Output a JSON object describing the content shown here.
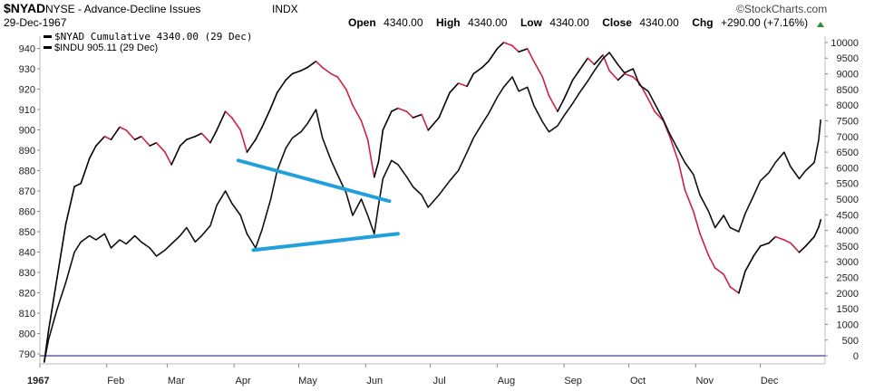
{
  "header": {
    "symbol": "$NYAD",
    "description": "NYSE - Advance-Decline Issues",
    "exchange": "INDX",
    "date": "29-Dec-1967",
    "watermark": "©StockCharts.com",
    "open_label": "Open",
    "open": "4340.00",
    "high_label": "High",
    "high": "4340.00",
    "low_label": "Low",
    "low": "4340.00",
    "close_label": "Close",
    "close": "4340.00",
    "chg_label": "Chg",
    "chg": "+290.00 (+7.16%)"
  },
  "colors": {
    "nyad_up": "#000000",
    "nyad_down": "#cc2244",
    "indu": "#111111",
    "trendline": "#22a0dc",
    "baseline": "#2b2b8a",
    "axis": "#bdbdbd",
    "chg_arrow": "#2e8b2e"
  },
  "chart_data": {
    "type": "line",
    "legend": [
      {
        "name": "$NYAD Cumulative 4340.00 (29 Dec)"
      },
      {
        "name": "$INDU 905.11 (29 Dec)"
      }
    ],
    "x_ticks": [
      "1967",
      "Feb",
      "Mar",
      "Apr",
      "May",
      "Jun",
      "Jul",
      "Aug",
      "Sep",
      "Oct",
      "Nov",
      "Dec"
    ],
    "left_axis": {
      "ticks": [
        790,
        800,
        810,
        820,
        830,
        840,
        850,
        860,
        870,
        880,
        890,
        900,
        910,
        920,
        930,
        940
      ],
      "range": [
        786,
        946
      ]
    },
    "right_axis": {
      "ticks": [
        0,
        500,
        1000,
        1500,
        2000,
        2500,
        3000,
        3500,
        4000,
        4500,
        5000,
        5500,
        6000,
        6500,
        7000,
        7500,
        8000,
        8500,
        9000,
        9500,
        10000
      ],
      "range": [
        -200,
        10200
      ]
    },
    "series": [
      {
        "name": "$NYAD Cumulative",
        "axis": "right",
        "points": [
          [
            "1967-01-03",
            -200
          ],
          [
            "1967-01-05",
            800
          ],
          [
            "1967-01-09",
            2500
          ],
          [
            "1967-01-13",
            4200
          ],
          [
            "1967-01-17",
            5400
          ],
          [
            "1967-01-20",
            5500
          ],
          [
            "1967-01-24",
            6300
          ],
          [
            "1967-01-27",
            6700
          ],
          [
            "1967-01-31",
            7000
          ],
          [
            "1967-02-03",
            6900
          ],
          [
            "1967-02-07",
            7300
          ],
          [
            "1967-02-10",
            7200
          ],
          [
            "1967-02-14",
            6900
          ],
          [
            "1967-02-17",
            7000
          ],
          [
            "1967-02-21",
            6700
          ],
          [
            "1967-02-24",
            6800
          ],
          [
            "1967-02-28",
            6500
          ],
          [
            "1967-03-03",
            6100
          ],
          [
            "1967-03-07",
            6700
          ],
          [
            "1967-03-10",
            6900
          ],
          [
            "1967-03-14",
            7000
          ],
          [
            "1967-03-17",
            7100
          ],
          [
            "1967-03-21",
            6800
          ],
          [
            "1967-03-24",
            7200
          ],
          [
            "1967-03-28",
            7800
          ],
          [
            "1967-03-31",
            7600
          ],
          [
            "1967-04-04",
            7200
          ],
          [
            "1967-04-07",
            6500
          ],
          [
            "1967-04-11",
            6900
          ],
          [
            "1967-04-14",
            7300
          ],
          [
            "1967-04-18",
            7900
          ],
          [
            "1967-04-21",
            8400
          ],
          [
            "1967-04-25",
            8800
          ],
          [
            "1967-04-28",
            9000
          ],
          [
            "1967-05-02",
            9100
          ],
          [
            "1967-05-05",
            9200
          ],
          [
            "1967-05-09",
            9400
          ],
          [
            "1967-05-12",
            9200
          ],
          [
            "1967-05-16",
            9000
          ],
          [
            "1967-05-19",
            8900
          ],
          [
            "1967-05-23",
            8500
          ],
          [
            "1967-05-26",
            8000
          ],
          [
            "1967-05-30",
            7500
          ],
          [
            "1967-06-02",
            6900
          ],
          [
            "1967-06-05",
            5700
          ],
          [
            "1967-06-07",
            6200
          ],
          [
            "1967-06-09",
            7200
          ],
          [
            "1967-06-13",
            7800
          ],
          [
            "1967-06-16",
            7900
          ],
          [
            "1967-06-20",
            7800
          ],
          [
            "1967-06-23",
            7600
          ],
          [
            "1967-06-27",
            7700
          ],
          [
            "1967-06-30",
            7200
          ],
          [
            "1967-07-05",
            7600
          ],
          [
            "1967-07-10",
            8400
          ],
          [
            "1967-07-14",
            8700
          ],
          [
            "1967-07-18",
            8600
          ],
          [
            "1967-07-21",
            9000
          ],
          [
            "1967-07-25",
            9200
          ],
          [
            "1967-07-28",
            9400
          ],
          [
            "1967-08-01",
            9800
          ],
          [
            "1967-08-04",
            10000
          ],
          [
            "1967-08-08",
            9900
          ],
          [
            "1967-08-11",
            9700
          ],
          [
            "1967-08-15",
            9800
          ],
          [
            "1967-08-18",
            9400
          ],
          [
            "1967-08-22",
            8900
          ],
          [
            "1967-08-25",
            8300
          ],
          [
            "1967-08-29",
            7800
          ],
          [
            "1967-09-01",
            8200
          ],
          [
            "1967-09-05",
            8800
          ],
          [
            "1967-09-08",
            9100
          ],
          [
            "1967-09-12",
            9500
          ],
          [
            "1967-09-15",
            9300
          ],
          [
            "1967-09-19",
            9600
          ],
          [
            "1967-09-22",
            9100
          ],
          [
            "1967-09-26",
            8800
          ],
          [
            "1967-09-29",
            9000
          ],
          [
            "1967-10-03",
            8900
          ],
          [
            "1967-10-06",
            8700
          ],
          [
            "1967-10-10",
            8200
          ],
          [
            "1967-10-13",
            7800
          ],
          [
            "1967-10-17",
            7500
          ],
          [
            "1967-10-20",
            7000
          ],
          [
            "1967-10-24",
            6200
          ],
          [
            "1967-10-27",
            5300
          ],
          [
            "1967-10-31",
            4600
          ],
          [
            "1967-11-03",
            3900
          ],
          [
            "1967-11-07",
            3200
          ],
          [
            "1967-11-10",
            2800
          ],
          [
            "1967-11-14",
            2600
          ],
          [
            "1967-11-17",
            2200
          ],
          [
            "1967-11-21",
            2000
          ],
          [
            "1967-11-24",
            2700
          ],
          [
            "1967-11-28",
            3200
          ],
          [
            "1967-12-01",
            3500
          ],
          [
            "1967-12-05",
            3600
          ],
          [
            "1967-12-08",
            3800
          ],
          [
            "1967-12-12",
            3700
          ],
          [
            "1967-12-15",
            3600
          ],
          [
            "1967-12-19",
            3300
          ],
          [
            "1967-12-22",
            3500
          ],
          [
            "1967-12-26",
            3800
          ],
          [
            "1967-12-28",
            4100
          ],
          [
            "1967-12-29",
            4340
          ]
        ]
      },
      {
        "name": "$INDU",
        "axis": "left",
        "points": [
          [
            "1967-01-03",
            786
          ],
          [
            "1967-01-05",
            797
          ],
          [
            "1967-01-09",
            812
          ],
          [
            "1967-01-13",
            825
          ],
          [
            "1967-01-17",
            840
          ],
          [
            "1967-01-20",
            845
          ],
          [
            "1967-01-24",
            848
          ],
          [
            "1967-01-27",
            846
          ],
          [
            "1967-01-31",
            849
          ],
          [
            "1967-02-03",
            842
          ],
          [
            "1967-02-07",
            846
          ],
          [
            "1967-02-10",
            844
          ],
          [
            "1967-02-14",
            848
          ],
          [
            "1967-02-17",
            845
          ],
          [
            "1967-02-21",
            842
          ],
          [
            "1967-02-24",
            838
          ],
          [
            "1967-02-28",
            841
          ],
          [
            "1967-03-03",
            844
          ],
          [
            "1967-03-07",
            848
          ],
          [
            "1967-03-10",
            852
          ],
          [
            "1967-03-14",
            845
          ],
          [
            "1967-03-17",
            848
          ],
          [
            "1967-03-21",
            853
          ],
          [
            "1967-03-24",
            863
          ],
          [
            "1967-03-28",
            870
          ],
          [
            "1967-03-31",
            864
          ],
          [
            "1967-04-04",
            858
          ],
          [
            "1967-04-07",
            849
          ],
          [
            "1967-04-11",
            842
          ],
          [
            "1967-04-14",
            851
          ],
          [
            "1967-04-18",
            866
          ],
          [
            "1967-04-21",
            880
          ],
          [
            "1967-04-25",
            891
          ],
          [
            "1967-04-28",
            896
          ],
          [
            "1967-05-02",
            899
          ],
          [
            "1967-05-05",
            903
          ],
          [
            "1967-05-09",
            910
          ],
          [
            "1967-05-12",
            896
          ],
          [
            "1967-05-16",
            885
          ],
          [
            "1967-05-19",
            878
          ],
          [
            "1967-05-23",
            869
          ],
          [
            "1967-05-26",
            858
          ],
          [
            "1967-05-30",
            866
          ],
          [
            "1967-06-02",
            858
          ],
          [
            "1967-06-05",
            849
          ],
          [
            "1967-06-07",
            863
          ],
          [
            "1967-06-09",
            876
          ],
          [
            "1967-06-13",
            885
          ],
          [
            "1967-06-16",
            883
          ],
          [
            "1967-06-20",
            877
          ],
          [
            "1967-06-23",
            872
          ],
          [
            "1967-06-27",
            868
          ],
          [
            "1967-06-30",
            862
          ],
          [
            "1967-07-05",
            868
          ],
          [
            "1967-07-10",
            875
          ],
          [
            "1967-07-14",
            880
          ],
          [
            "1967-07-18",
            889
          ],
          [
            "1967-07-21",
            896
          ],
          [
            "1967-07-25",
            903
          ],
          [
            "1967-07-28",
            908
          ],
          [
            "1967-08-01",
            916
          ],
          [
            "1967-08-04",
            921
          ],
          [
            "1967-08-08",
            926
          ],
          [
            "1967-08-11",
            919
          ],
          [
            "1967-08-15",
            921
          ],
          [
            "1967-08-18",
            912
          ],
          [
            "1967-08-22",
            904
          ],
          [
            "1967-08-25",
            899
          ],
          [
            "1967-08-29",
            902
          ],
          [
            "1967-09-01",
            907
          ],
          [
            "1967-09-05",
            913
          ],
          [
            "1967-09-08",
            918
          ],
          [
            "1967-09-12",
            924
          ],
          [
            "1967-09-15",
            929
          ],
          [
            "1967-09-19",
            935
          ],
          [
            "1967-09-22",
            938
          ],
          [
            "1967-09-26",
            932
          ],
          [
            "1967-09-29",
            928
          ],
          [
            "1967-10-03",
            930
          ],
          [
            "1967-10-06",
            922
          ],
          [
            "1967-10-10",
            919
          ],
          [
            "1967-10-13",
            913
          ],
          [
            "1967-10-17",
            905
          ],
          [
            "1967-10-20",
            898
          ],
          [
            "1967-10-24",
            890
          ],
          [
            "1967-10-27",
            884
          ],
          [
            "1967-10-31",
            878
          ],
          [
            "1967-11-03",
            868
          ],
          [
            "1967-11-07",
            860
          ],
          [
            "1967-11-10",
            852
          ],
          [
            "1967-11-14",
            858
          ],
          [
            "1967-11-17",
            852
          ],
          [
            "1967-11-21",
            850
          ],
          [
            "1967-11-24",
            859
          ],
          [
            "1967-11-28",
            868
          ],
          [
            "1967-12-01",
            875
          ],
          [
            "1967-12-05",
            879
          ],
          [
            "1967-12-08",
            884
          ],
          [
            "1967-12-12",
            889
          ],
          [
            "1967-12-15",
            882
          ],
          [
            "1967-12-19",
            876
          ],
          [
            "1967-12-22",
            880
          ],
          [
            "1967-12-26",
            884
          ],
          [
            "1967-12-28",
            895
          ],
          [
            "1967-12-29",
            905.11
          ]
        ]
      }
    ],
    "annotations": [
      {
        "type": "trendline",
        "axis": "left",
        "from": [
          "1967-04-03",
          885
        ],
        "to": [
          "1967-06-12",
          865
        ]
      },
      {
        "type": "trendline",
        "axis": "left",
        "from": [
          "1967-04-10",
          841
        ],
        "to": [
          "1967-06-16",
          849
        ]
      }
    ],
    "baseline": {
      "axis": "right",
      "value": 0
    },
    "grid": false
  }
}
